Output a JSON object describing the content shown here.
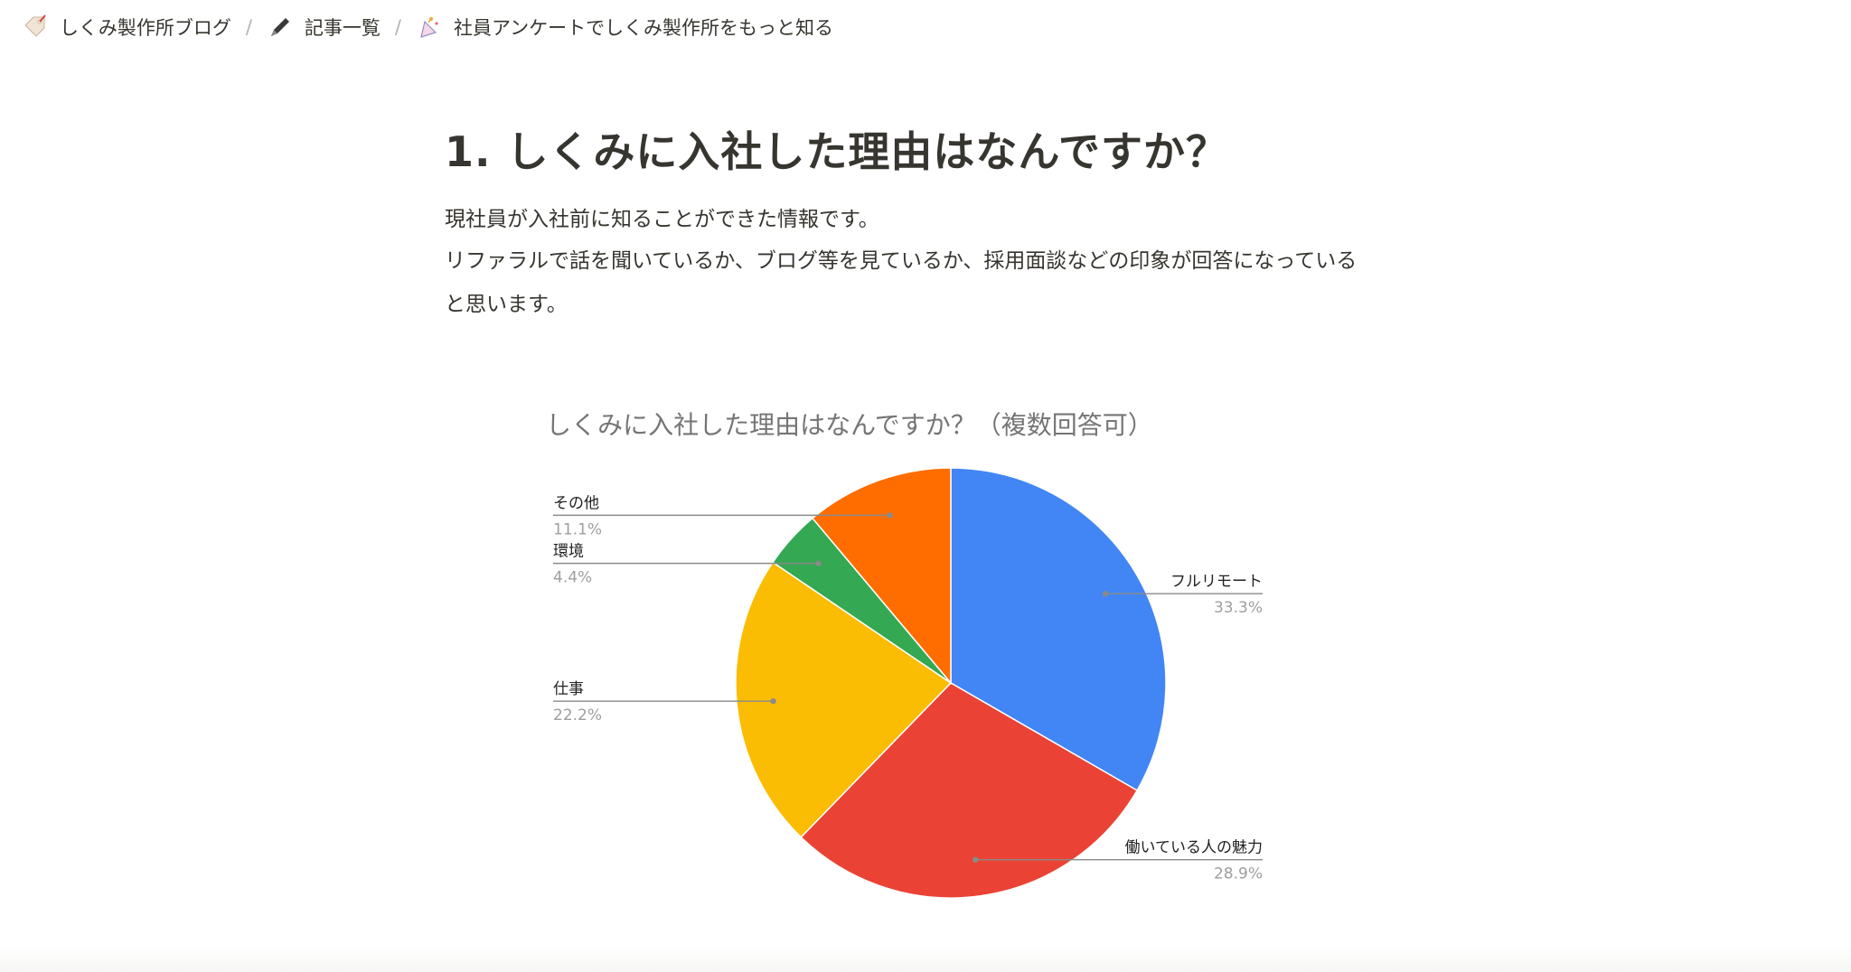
{
  "breadcrumb": {
    "items": [
      {
        "label": "しくみ製作所ブログ",
        "icon": "tag-icon"
      },
      {
        "label": "記事一覧",
        "icon": "pen-icon"
      },
      {
        "label": "社員アンケートでしくみ製作所をもっと知る",
        "icon": "party-icon"
      }
    ],
    "separator": "/"
  },
  "section": {
    "heading": "1. しくみに入社した理由はなんですか？",
    "paragraph_lines": [
      "現社員が入社前に知ることができた情報です。",
      "リファラルで話を聞いているか、ブログ等を見ているか、採用面談などの印象が回答になっている",
      "と思います。"
    ]
  },
  "chart_data": {
    "type": "pie",
    "title": "しくみに入社した理由はなんですか？（複数回答可）",
    "slices": [
      {
        "label": "フルリモート",
        "value": 33.3,
        "value_label": "33.3%",
        "color": "#4285f4"
      },
      {
        "label": "働いている人の魅力",
        "value": 28.9,
        "value_label": "28.9%",
        "color": "#ea4335"
      },
      {
        "label": "仕事",
        "value": 22.2,
        "value_label": "22.2%",
        "color": "#fbbc04"
      },
      {
        "label": "環境",
        "value": 4.4,
        "value_label": "4.4%",
        "color": "#34a853"
      },
      {
        "label": "その他",
        "value": 11.1,
        "value_label": "11.1%",
        "color": "#ff6d01"
      }
    ],
    "start_angle": "12 o'clock",
    "direction": "clockwise",
    "legend": "none"
  }
}
